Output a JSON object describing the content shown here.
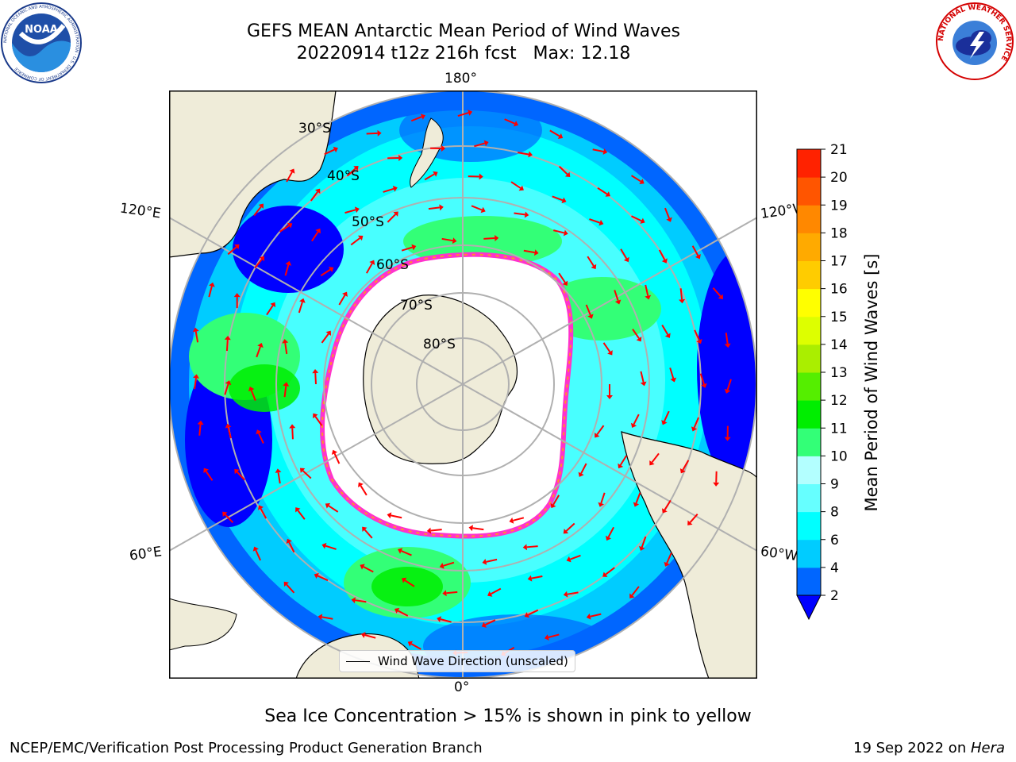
{
  "title": {
    "line1": "GEFS MEAN Antarctic Mean Period of Wind Waves",
    "line2": "20220914 t12z 216h fcst   Max: 12.18"
  },
  "map": {
    "projection": "south-polar-stereographic",
    "longitude_labels": {
      "top": "180°",
      "bottom": "0°",
      "upper_left": "120°E",
      "lower_left": "60°E",
      "upper_right": "120°W",
      "lower_right": "60°W"
    },
    "latitude_labels": [
      "30°S",
      "40°S",
      "50°S",
      "60°S",
      "70°S",
      "80°S"
    ],
    "colors": {
      "land": "#efecd9",
      "ice_free_open_water": "#ffffff",
      "grid": "#b0b0b0",
      "sea_ice_edge": "#ff33cc",
      "wind_arrow": "#ff0000"
    }
  },
  "colorbar": {
    "label": "Mean Period of Wind Waves [s]",
    "ticks": [
      "2",
      "4",
      "6",
      "8",
      "9",
      "10",
      "11",
      "12",
      "13",
      "14",
      "15",
      "16",
      "17",
      "18",
      "19",
      "20",
      "21"
    ],
    "colors": [
      "#0000ff",
      "#0066ff",
      "#00ccff",
      "#00ffff",
      "#66ffff",
      "#b3ffff",
      "#33ff77",
      "#00ee00",
      "#55ee00",
      "#aaee00",
      "#ddff00",
      "#ffff00",
      "#ffcc00",
      "#ffaa00",
      "#ff8800",
      "#ff5500",
      "#ff2200",
      "#ff0000"
    ]
  },
  "legend": {
    "label": "Wind Wave Direction (unscaled)"
  },
  "subcaption": "Sea Ice Concentration > 15% is shown in pink to yellow",
  "footer": {
    "left": "NCEP/EMC/Verification Post Processing Product Generation Branch",
    "right_prefix": "19 Sep 2022 on ",
    "right_italic": "Hera"
  },
  "logos": {
    "noaa": {
      "text": "NOAA",
      "ring_text": "NATIONAL OCEANIC AND ATMOSPHERIC ADMINISTRATION · U.S. DEPARTMENT OF COMMERCE"
    },
    "nws": {
      "ring_text": "NATIONAL WEATHER SERVICE"
    }
  }
}
